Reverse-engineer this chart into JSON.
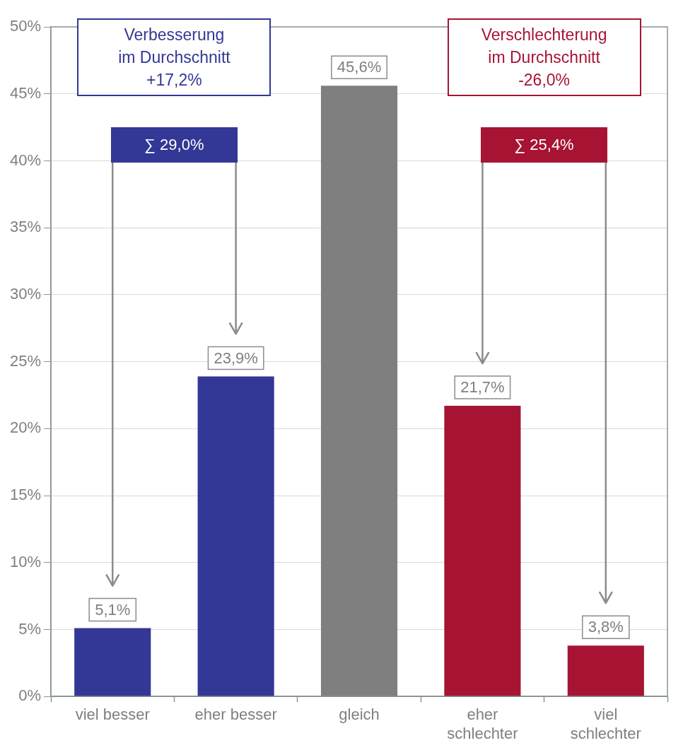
{
  "chart_data": {
    "type": "bar",
    "categories": [
      "viel besser",
      "eher besser",
      "gleich",
      "eher schlechter",
      "viel schlechter"
    ],
    "values": [
      5.1,
      23.9,
      45.6,
      21.7,
      3.8
    ],
    "colors": [
      "#333795",
      "#333795",
      "#7f7f7f",
      "#a71433",
      "#a71433"
    ],
    "value_labels": [
      "5,1%",
      "23,9%",
      "45,6%",
      "21,7%",
      "3,8%"
    ],
    "ylim": [
      0,
      50
    ],
    "yticks": [
      {
        "value": 0,
        "label": "0%"
      },
      {
        "value": 5,
        "label": "5%"
      },
      {
        "value": 10,
        "label": "10%"
      },
      {
        "value": 15,
        "label": "15%"
      },
      {
        "value": 20,
        "label": "20%"
      },
      {
        "value": 25,
        "label": "25%"
      },
      {
        "value": 30,
        "label": "30%"
      },
      {
        "value": 35,
        "label": "35%"
      },
      {
        "value": 40,
        "label": "40%"
      },
      {
        "value": 45,
        "label": "45%"
      },
      {
        "value": 50,
        "label": "50%"
      }
    ],
    "grid": "y",
    "legend": false,
    "annotations": [
      "Verbesserung\nim Durchschnitt\n+17,2%",
      "Verschlechterung\nim Durchschnitt\n-26,0%",
      "∑ 29,0%",
      "∑ 25,4%"
    ]
  }
}
